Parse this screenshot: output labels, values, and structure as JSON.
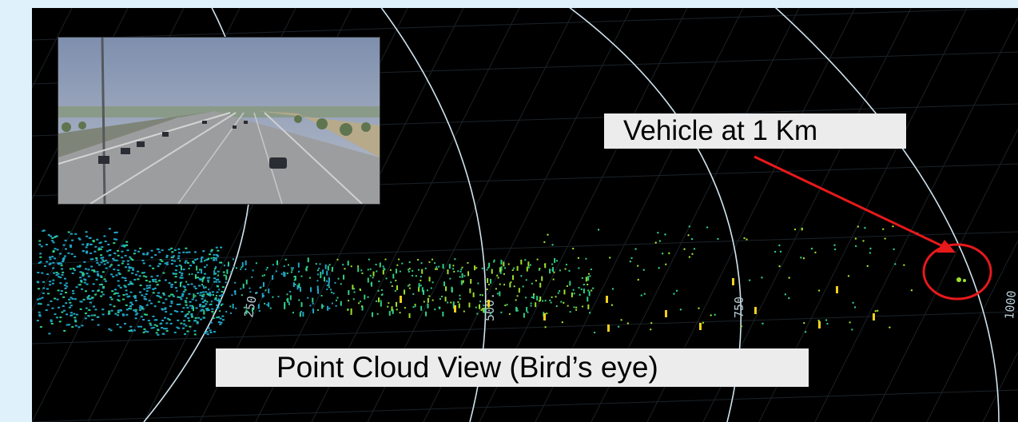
{
  "annotations": {
    "vehicle_label": "Vehicle at 1 Km",
    "view_label": "Point Cloud View (Bird’s eye)"
  },
  "range_rings": [
    {
      "value": 250,
      "label": "250."
    },
    {
      "value": 500,
      "label": "500."
    },
    {
      "value": 750,
      "label": "750"
    },
    {
      "value": 1000,
      "label": "1000"
    }
  ],
  "colors": {
    "background": "#dff2fc",
    "viewport": "#000000",
    "ring": "#cfe3ee",
    "arrow": "#e8191b",
    "highlight_circle": "#e8191b",
    "points_near": "#1fa6c8",
    "points_mid": "#2fcf8a",
    "points_far": "#9fe02a",
    "vehicle_markers": "#f2d21a"
  },
  "icons": {
    "inset": "highway-camera-photo-icon",
    "target": "highlight-circle-icon",
    "pointer": "red-arrow-icon"
  }
}
